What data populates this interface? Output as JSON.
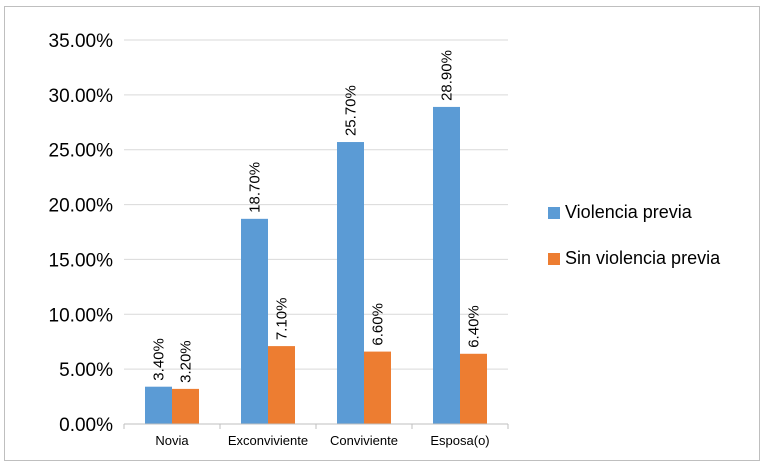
{
  "chart_data": {
    "type": "bar",
    "categories": [
      "Novia",
      "Exconviviente",
      "Conviviente",
      "Esposa(o)"
    ],
    "series": [
      {
        "name": "Violencia previa",
        "color": "#5b9bd5",
        "values": [
          3.4,
          18.7,
          25.7,
          28.9
        ],
        "labels": [
          "3.40%",
          "18.70%",
          "25.70%",
          "28.90%"
        ]
      },
      {
        "name": "Sin violencia previa",
        "color": "#ed7d31",
        "values": [
          3.2,
          7.1,
          6.6,
          6.4
        ],
        "labels": [
          "3.20%",
          "7.10%",
          "6.60%",
          "6.40%"
        ]
      }
    ],
    "ylim": [
      0,
      35
    ],
    "yticks": [
      "0.00%",
      "5.00%",
      "10.00%",
      "15.00%",
      "20.00%",
      "25.00%",
      "30.00%",
      "35.00%"
    ],
    "grid": true,
    "legend_position": "right",
    "title": "",
    "xlabel": "",
    "ylabel": ""
  }
}
